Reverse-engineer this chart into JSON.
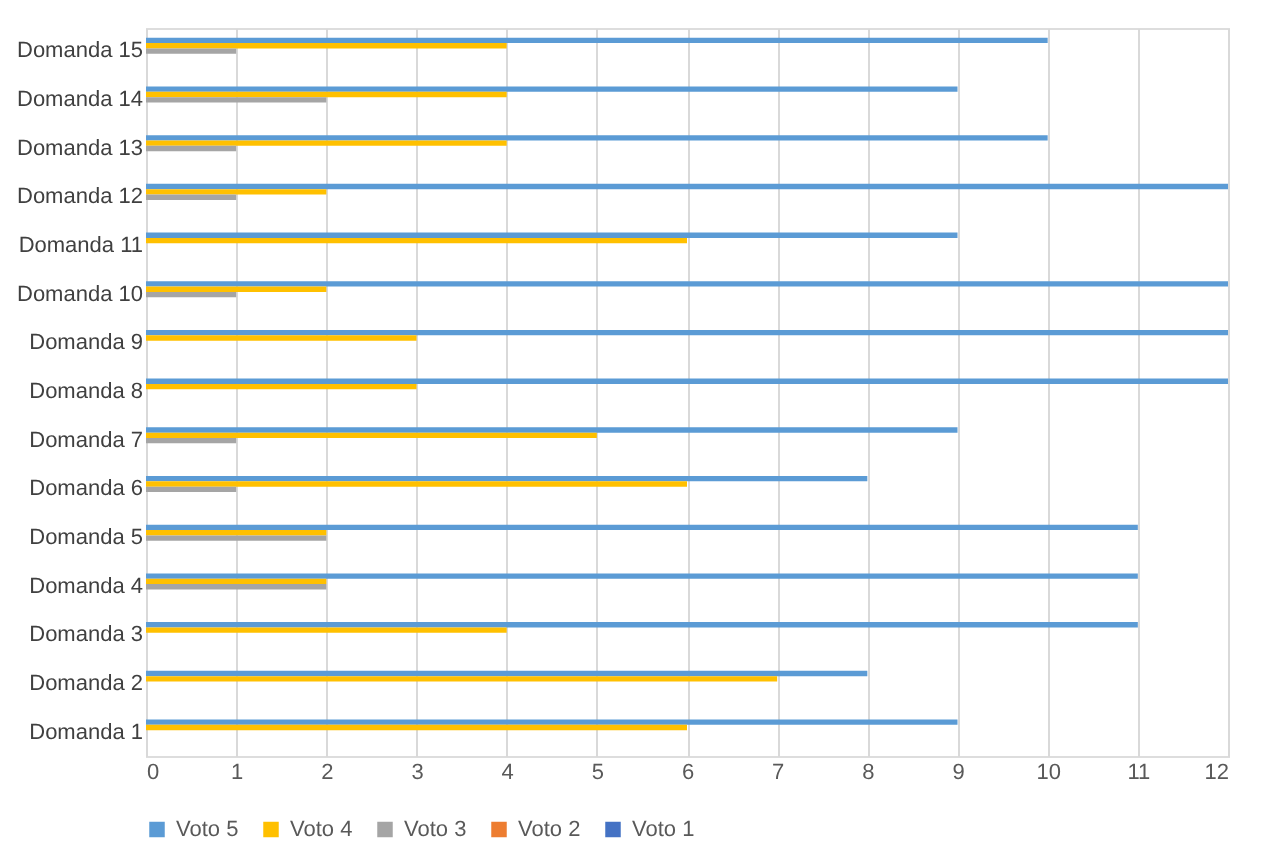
{
  "chart_data": {
    "type": "bar",
    "orientation": "horizontal",
    "categories": [
      "Domanda 15",
      "Domanda 14",
      "Domanda 13",
      "Domanda 12",
      "Domanda 11",
      "Domanda 10",
      "Domanda 9",
      "Domanda 8",
      "Domanda 7",
      "Domanda 6",
      "Domanda 5",
      "Domanda 4",
      "Domanda 3",
      "Domanda 2",
      "Domanda 1"
    ],
    "series": [
      {
        "name": "Voto 5",
        "color": "#5b9bd5",
        "values": [
          10,
          9,
          10,
          12,
          9,
          12,
          12,
          12,
          9,
          8,
          11,
          11,
          11,
          8,
          9
        ]
      },
      {
        "name": "Voto 4",
        "color": "#ffc000",
        "values": [
          4,
          4,
          4,
          2,
          6,
          2,
          3,
          3,
          5,
          6,
          2,
          2,
          4,
          7,
          6
        ]
      },
      {
        "name": "Voto 3",
        "color": "#a5a5a5",
        "values": [
          1,
          2,
          1,
          1,
          0,
          1,
          0,
          0,
          1,
          1,
          2,
          2,
          0,
          0,
          0
        ]
      },
      {
        "name": "Voto 2",
        "color": "#ed7d31",
        "values": [
          0,
          0,
          0,
          0,
          0,
          0,
          0,
          0,
          0,
          0,
          0,
          0,
          0,
          0,
          0
        ]
      },
      {
        "name": "Voto 1",
        "color": "#4472c4",
        "values": [
          0,
          0,
          0,
          0,
          0,
          0,
          0,
          0,
          0,
          0,
          0,
          0,
          0,
          0,
          0
        ]
      }
    ],
    "xlim": [
      0,
      12
    ],
    "xticks": [
      0,
      1,
      2,
      3,
      4,
      5,
      6,
      7,
      8,
      9,
      10,
      11,
      12
    ],
    "grid": "x",
    "legend": "bottom"
  }
}
